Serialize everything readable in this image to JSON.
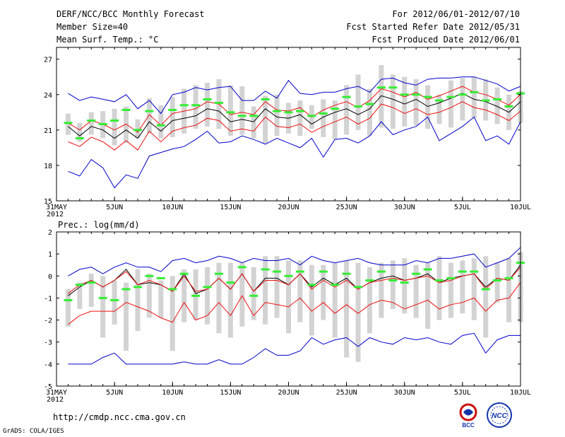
{
  "header": {
    "title": "DERF/NCC/BCC Monthly Forecast",
    "member_size": "Member Size=40",
    "variable": "Mean Surf. Temp.: °C",
    "period": "For 2012/06/01-2012/07/10",
    "started": "Fcst Started Refer Date 2012/05/31",
    "produced": "Fcst Produced Date 2012/06/01"
  },
  "footer": {
    "url": "http://cmdp.ncc.cma.gov.cn",
    "grads": "GrADS: COLA/IGES",
    "logo_bcc": "BCC",
    "logo_ncc": "NCC"
  },
  "colors": {
    "bars": "#d3d3d3",
    "green": "#33ee33",
    "red": "#ee1111",
    "blue": "#0000cc",
    "ensemble": "#000000"
  },
  "chart_data": [
    {
      "type": "line",
      "name": "temperature",
      "title": "",
      "ylabel": "Mean Surf. Temp.: °C",
      "ylim": [
        15,
        28
      ],
      "yticks": [
        "15",
        "18",
        "21",
        "24",
        "27"
      ],
      "xlim": [
        0,
        40
      ],
      "xticks": [
        {
          "d": 0,
          "label": "31MAY",
          "sub": "2012"
        },
        {
          "d": 5,
          "label": "5JUN"
        },
        {
          "d": 10,
          "label": "10JUN"
        },
        {
          "d": 15,
          "label": "15JUN"
        },
        {
          "d": 20,
          "label": "20JUN"
        },
        {
          "d": 25,
          "label": "25JUN"
        },
        {
          "d": 30,
          "label": "30JUN"
        },
        {
          "d": 35,
          "label": "5JUL"
        },
        {
          "d": 40,
          "label": "10JUL"
        }
      ],
      "days": [
        1,
        2,
        3,
        4,
        5,
        6,
        7,
        8,
        9,
        10,
        11,
        12,
        13,
        14,
        15,
        16,
        17,
        18,
        19,
        20,
        21,
        22,
        23,
        24,
        25,
        26,
        27,
        28,
        29,
        30,
        31,
        32,
        33,
        34,
        35,
        36,
        37,
        38,
        39,
        40
      ],
      "bar_low": [
        20.6,
        20.0,
        20.6,
        20.3,
        19.7,
        19.9,
        20.3,
        20.7,
        20.3,
        20.4,
        20.7,
        21.1,
        21.3,
        21.1,
        20.5,
        20.6,
        20.3,
        19.9,
        20.5,
        20.7,
        20.5,
        21.1,
        20.4,
        20.2,
        20.6,
        21.0,
        20.5,
        21.2,
        21.1,
        21.3,
        21.4,
        21.1,
        21.5,
        21.2,
        21.8,
        22.0,
        21.8,
        21.5,
        21.0,
        21.6
      ],
      "bar_high": [
        22.4,
        21.6,
        22.5,
        22.6,
        22.8,
        23.0,
        21.9,
        23.7,
        23.1,
        23.8,
        24.5,
        24.8,
        25.0,
        25.3,
        24.8,
        24.7,
        23.0,
        23.9,
        24.0,
        23.3,
        23.5,
        23.1,
        23.6,
        23.5,
        24.8,
        25.7,
        24.5,
        26.5,
        25.7,
        25.5,
        25.3,
        24.8,
        24.0,
        25.2,
        25.4,
        25.5,
        25.3,
        24.6,
        24.0,
        24.3
      ],
      "series": [
        {
          "name": "model_forecast",
          "style": "green_marks",
          "values": [
            21.6,
            20.3,
            21.8,
            21.5,
            21.8,
            22.7,
            21.0,
            22.6,
            21.4,
            22.7,
            23.1,
            23.1,
            23.6,
            23.3,
            22.5,
            22.2,
            22.2,
            23.6,
            22.6,
            22.5,
            22.6,
            22.2,
            22.4,
            22.8,
            23.8,
            23.0,
            23.2,
            24.6,
            24.6,
            24.0,
            24.0,
            23.8,
            23.5,
            23.8,
            24.0,
            24.2,
            23.5,
            23.6,
            23.0,
            24.1
          ]
        },
        {
          "name": "ensemble_mean",
          "style": "black_line",
          "values": [
            21.3,
            20.5,
            21.3,
            21.0,
            20.3,
            21.0,
            20.3,
            21.7,
            20.9,
            21.8,
            22.0,
            22.2,
            22.8,
            22.6,
            21.7,
            21.9,
            21.7,
            22.8,
            22.1,
            22.0,
            22.3,
            21.5,
            22.1,
            22.5,
            22.8,
            22.3,
            22.8,
            23.9,
            23.6,
            23.2,
            23.6,
            23.0,
            23.3,
            23.7,
            24.1,
            23.6,
            23.4,
            23.0,
            22.5,
            23.4
          ]
        },
        {
          "name": "upper_spread",
          "style": "red_line",
          "values": [
            21.6,
            21.0,
            21.8,
            21.5,
            21.0,
            21.5,
            20.8,
            22.3,
            21.4,
            22.4,
            22.6,
            22.8,
            23.4,
            23.2,
            22.3,
            22.5,
            22.3,
            23.4,
            22.7,
            22.6,
            22.9,
            22.1,
            22.7,
            23.1,
            23.4,
            22.9,
            23.5,
            24.5,
            24.2,
            23.8,
            24.2,
            23.6,
            23.9,
            24.3,
            24.7,
            24.2,
            24.0,
            23.6,
            23.1,
            24.0
          ]
        },
        {
          "name": "lower_spread",
          "style": "red_line",
          "values": [
            20.0,
            19.6,
            20.4,
            20.0,
            19.3,
            20.1,
            19.3,
            20.9,
            20.0,
            20.9,
            21.2,
            21.4,
            22.0,
            21.8,
            20.9,
            21.1,
            20.9,
            22.1,
            21.3,
            21.2,
            21.5,
            20.8,
            21.3,
            21.7,
            22.1,
            21.5,
            22.0,
            23.2,
            22.9,
            22.4,
            22.8,
            22.3,
            22.5,
            22.9,
            23.4,
            22.9,
            22.7,
            22.3,
            21.8,
            22.6
          ]
        },
        {
          "name": "upper_extreme",
          "style": "blue_line",
          "values": [
            24.1,
            23.5,
            23.8,
            23.6,
            23.4,
            24.0,
            22.8,
            23.5,
            22.4,
            24.0,
            24.2,
            24.6,
            24.4,
            24.6,
            24.7,
            23.5,
            23.5,
            24.3,
            23.7,
            25.2,
            24.1,
            24.0,
            24.2,
            24.2,
            24.5,
            24.7,
            24.2,
            25.3,
            25.4,
            25.0,
            24.8,
            25.3,
            25.4,
            25.4,
            25.5,
            25.5,
            25.2,
            24.9,
            24.3,
            24.7
          ]
        },
        {
          "name": "lower_extreme",
          "style": "blue_line",
          "values": [
            17.5,
            17.1,
            18.5,
            17.8,
            16.1,
            17.2,
            16.9,
            18.8,
            19.1,
            19.4,
            19.6,
            20.2,
            20.9,
            19.9,
            20.0,
            20.5,
            20.2,
            19.8,
            20.3,
            19.9,
            19.5,
            20.3,
            18.7,
            20.2,
            20.3,
            19.9,
            20.5,
            21.7,
            20.6,
            21.0,
            21.3,
            22.1,
            20.1,
            20.7,
            21.3,
            22.1,
            20.1,
            20.5,
            19.8,
            21.7
          ]
        }
      ]
    },
    {
      "type": "line",
      "name": "precipitation",
      "title": "",
      "ylabel": "Prec.: log(mm/d)",
      "ylim": [
        -5,
        2
      ],
      "yticks": [
        "-5",
        "-4",
        "-3",
        "-2",
        "-1",
        "0",
        "1",
        "2"
      ],
      "xlim": [
        0,
        40
      ],
      "xticks": [
        {
          "d": 0,
          "label": "31MAY",
          "sub": "2012"
        },
        {
          "d": 5,
          "label": "5JUN"
        },
        {
          "d": 10,
          "label": "10JUN"
        },
        {
          "d": 15,
          "label": "15JUN"
        },
        {
          "d": 20,
          "label": "20JUN"
        },
        {
          "d": 25,
          "label": "25JUN"
        },
        {
          "d": 30,
          "label": "30JUN"
        },
        {
          "d": 35,
          "label": "5JUL"
        },
        {
          "d": 40,
          "label": "10JUL"
        }
      ],
      "days": [
        1,
        2,
        3,
        4,
        5,
        6,
        7,
        8,
        9,
        10,
        11,
        12,
        13,
        14,
        15,
        16,
        17,
        18,
        19,
        20,
        21,
        22,
        23,
        24,
        25,
        26,
        27,
        28,
        29,
        30,
        31,
        32,
        33,
        34,
        35,
        36,
        37,
        38,
        39,
        40
      ],
      "bar_low": [
        -2.3,
        -1.5,
        -1.4,
        -2.8,
        -2.2,
        -3.4,
        -2.5,
        -1.9,
        -1.9,
        -3.4,
        -2.1,
        -2.0,
        -2.2,
        -2.6,
        -2.8,
        -2.3,
        -2.0,
        -2.2,
        -1.9,
        -2.6,
        -2.1,
        -2.7,
        -2.0,
        -2.8,
        -3.7,
        -3.9,
        -2.6,
        -1.9,
        -1.5,
        -1.7,
        -1.9,
        -2.4,
        -2.0,
        -1.9,
        -1.7,
        -2.0,
        -2.8,
        -1.2,
        -2.1,
        -2.1
      ],
      "bar_high": [
        -0.6,
        -0.3,
        0.1,
        0.0,
        -0.2,
        -0.3,
        0.3,
        0.1,
        -0.2,
        0.0,
        0.3,
        0.3,
        0.4,
        0.6,
        0.6,
        0.6,
        0.4,
        0.9,
        0.9,
        0.7,
        0.7,
        0.5,
        0.5,
        0.6,
        0.7,
        0.6,
        0.4,
        0.6,
        0.7,
        0.8,
        0.5,
        0.6,
        0.9,
        0.6,
        0.7,
        0.8,
        0.9,
        0.6,
        0.8,
        1.1
      ],
      "series": [
        {
          "name": "model_forecast",
          "style": "green_marks",
          "values": [
            -1.1,
            -0.4,
            -0.3,
            -1.0,
            -1.1,
            -0.6,
            -0.5,
            0.0,
            -0.1,
            -0.6,
            0.1,
            -0.9,
            -0.5,
            0.1,
            -0.3,
            0.4,
            -0.9,
            0.3,
            0.2,
            0.0,
            0.2,
            -0.4,
            0.2,
            -0.4,
            0.1,
            -0.5,
            -0.2,
            0.2,
            -0.2,
            -0.3,
            0.1,
            0.3,
            -0.2,
            -0.1,
            0.2,
            0.2,
            -0.6,
            -0.2,
            -0.1,
            0.6
          ]
        },
        {
          "name": "ensemble_mean",
          "style": "black_line",
          "values": [
            -0.9,
            -0.5,
            -0.2,
            -0.5,
            -0.2,
            0.3,
            -0.4,
            -0.3,
            -0.4,
            -0.7,
            0.1,
            -0.8,
            -0.6,
            -0.1,
            -0.6,
            0.1,
            -0.7,
            -0.1,
            -0.1,
            -0.4,
            0.1,
            -0.5,
            -0.1,
            -0.4,
            -0.1,
            -0.6,
            -0.3,
            -0.1,
            0.0,
            -0.2,
            -0.1,
            0.1,
            -0.3,
            -0.1,
            0.0,
            0.1,
            -0.5,
            -0.1,
            -0.2,
            0.5
          ]
        },
        {
          "name": "upper_spread",
          "style": "red_line",
          "values": [
            -0.8,
            -0.4,
            -0.2,
            -0.5,
            -0.2,
            0.2,
            -0.4,
            -0.2,
            -0.4,
            -0.7,
            0.0,
            -0.7,
            -0.6,
            -0.1,
            -0.6,
            0.1,
            -0.7,
            -0.2,
            -0.2,
            -0.4,
            0.1,
            -0.6,
            -0.2,
            -0.5,
            -0.2,
            -0.6,
            -0.3,
            -0.2,
            -0.1,
            -0.2,
            -0.1,
            0.0,
            -0.3,
            -0.2,
            0.0,
            0.1,
            -0.6,
            -0.1,
            -0.2,
            0.4
          ]
        },
        {
          "name": "lower_spread",
          "style": "red_line",
          "values": [
            -2.2,
            -1.8,
            -1.6,
            -1.6,
            -1.6,
            -1.2,
            -1.4,
            -1.6,
            -1.9,
            -2.1,
            -1.2,
            -2.0,
            -1.8,
            -1.2,
            -1.8,
            -0.9,
            -1.8,
            -1.2,
            -1.3,
            -1.4,
            -1.0,
            -1.6,
            -1.2,
            -1.7,
            -1.3,
            -1.7,
            -1.3,
            -1.1,
            -1.2,
            -1.5,
            -1.3,
            -1.1,
            -1.5,
            -1.3,
            -1.2,
            -1.0,
            -1.6,
            -1.1,
            -1.0,
            -0.3
          ]
        },
        {
          "name": "upper_extreme",
          "style": "blue_line",
          "values": [
            0.0,
            0.3,
            0.4,
            0.1,
            0.4,
            0.6,
            0.4,
            0.4,
            0.2,
            0.7,
            0.8,
            0.6,
            0.7,
            0.9,
            0.8,
            0.6,
            0.8,
            0.7,
            0.7,
            0.8,
            0.5,
            0.9,
            0.7,
            0.6,
            0.7,
            0.8,
            0.6,
            0.5,
            0.5,
            0.5,
            0.7,
            0.6,
            0.8,
            0.8,
            0.9,
            1.0,
            0.4,
            0.6,
            0.8,
            1.3
          ]
        },
        {
          "name": "lower_extreme",
          "style": "blue_line",
          "values": [
            -4.0,
            -4.0,
            -4.0,
            -3.7,
            -3.5,
            -4.0,
            -4.0,
            -4.0,
            -4.0,
            -4.0,
            -3.9,
            -4.0,
            -4.0,
            -3.8,
            -4.0,
            -4.0,
            -3.7,
            -3.3,
            -3.6,
            -3.6,
            -3.4,
            -2.8,
            -3.1,
            -2.9,
            -2.8,
            -3.2,
            -2.8,
            -3.0,
            -3.1,
            -2.8,
            -2.9,
            -2.8,
            -3.0,
            -3.1,
            -2.7,
            -2.6,
            -3.5,
            -2.9,
            -2.7,
            -2.7
          ]
        }
      ]
    }
  ]
}
